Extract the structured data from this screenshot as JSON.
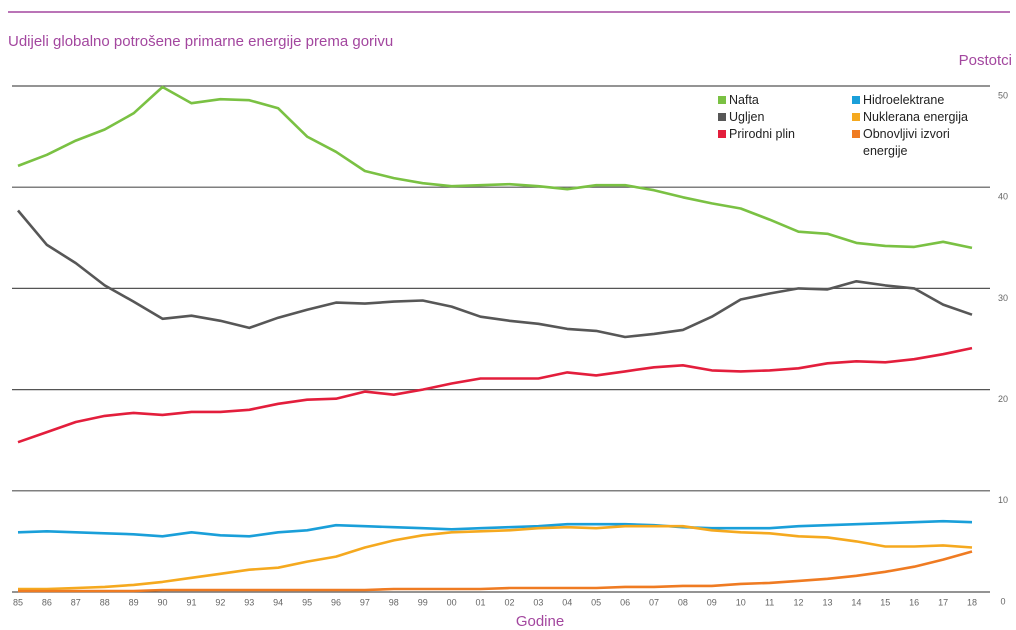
{
  "chart_data": {
    "type": "line",
    "title": "Udijeli globalno potrošene primarne energije prema gorivu",
    "y_label": "Postotci",
    "x_label": "Godine",
    "categories": [
      "85",
      "86",
      "87",
      "88",
      "89",
      "90",
      "91",
      "92",
      "93",
      "94",
      "95",
      "96",
      "97",
      "98",
      "99",
      "00",
      "01",
      "02",
      "03",
      "04",
      "05",
      "06",
      "07",
      "08",
      "09",
      "10",
      "11",
      "12",
      "13",
      "14",
      "15",
      "16",
      "17",
      "18"
    ],
    "ylim": [
      0,
      50
    ],
    "yticks": [
      0,
      10,
      20,
      30,
      40,
      50
    ],
    "grid": true,
    "series": [
      {
        "name": "Nafta",
        "color": "#7ac143",
        "values": [
          42.1,
          43.2,
          44.6,
          45.7,
          47.3,
          49.9,
          48.3,
          48.7,
          48.6,
          47.8,
          45.0,
          43.5,
          41.6,
          40.9,
          40.4,
          40.1,
          40.2,
          40.3,
          40.1,
          39.8,
          40.2,
          40.2,
          39.7,
          39.0,
          38.4,
          37.9,
          36.8,
          35.6,
          35.4,
          34.5,
          34.2,
          34.1,
          34.6,
          34.0
        ]
      },
      {
        "name": "Ugljen",
        "color": "#575757",
        "values": [
          37.7,
          34.3,
          32.5,
          30.3,
          28.7,
          27.0,
          27.3,
          26.8,
          26.1,
          27.1,
          27.9,
          28.6,
          28.5,
          28.7,
          28.8,
          28.2,
          27.2,
          26.8,
          26.5,
          26.0,
          25.8,
          25.2,
          25.5,
          25.9,
          27.2,
          28.9,
          29.5,
          30.0,
          29.9,
          30.7,
          30.3,
          30.0,
          28.4,
          27.4
        ]
      },
      {
        "name": "Prirodni plin",
        "color": "#e31e3c",
        "values": [
          14.8,
          15.8,
          16.8,
          17.4,
          17.7,
          17.5,
          17.8,
          17.8,
          18.0,
          18.6,
          19.0,
          19.1,
          19.8,
          19.5,
          20.0,
          20.6,
          21.1,
          21.1,
          21.1,
          21.7,
          21.4,
          21.8,
          22.2,
          22.4,
          21.9,
          21.8,
          21.9,
          22.1,
          22.6,
          22.8,
          22.7,
          23.0,
          23.5,
          24.1
        ]
      },
      {
        "name": "Hidroelektrane",
        "color": "#1a9fd9",
        "values": [
          5.9,
          6.0,
          5.9,
          5.8,
          5.7,
          5.5,
          5.9,
          5.6,
          5.5,
          5.9,
          6.1,
          6.6,
          6.5,
          6.4,
          6.3,
          6.2,
          6.3,
          6.4,
          6.5,
          6.7,
          6.7,
          6.7,
          6.6,
          6.4,
          6.3,
          6.3,
          6.3,
          6.5,
          6.6,
          6.7,
          6.8,
          6.9,
          7.0,
          6.9
        ]
      },
      {
        "name": "Nuklerana energija",
        "color": "#f5a91f",
        "values": [
          0.3,
          0.3,
          0.4,
          0.5,
          0.7,
          1.0,
          1.4,
          1.8,
          2.2,
          2.4,
          3.0,
          3.5,
          4.4,
          5.1,
          5.6,
          5.9,
          6.0,
          6.1,
          6.3,
          6.4,
          6.3,
          6.5,
          6.5,
          6.5,
          6.1,
          5.9,
          5.8,
          5.5,
          5.4,
          5.0,
          4.5,
          4.5,
          4.6,
          4.4
        ]
      },
      {
        "name": "Obnovljivi izvori energije",
        "color": "#ef7b22",
        "values": [
          0.1,
          0.1,
          0.1,
          0.1,
          0.1,
          0.2,
          0.2,
          0.2,
          0.2,
          0.2,
          0.2,
          0.2,
          0.2,
          0.3,
          0.3,
          0.3,
          0.3,
          0.4,
          0.4,
          0.4,
          0.4,
          0.5,
          0.5,
          0.6,
          0.6,
          0.8,
          0.9,
          1.1,
          1.3,
          1.6,
          2.0,
          2.5,
          3.2,
          4.0
        ]
      }
    ]
  }
}
